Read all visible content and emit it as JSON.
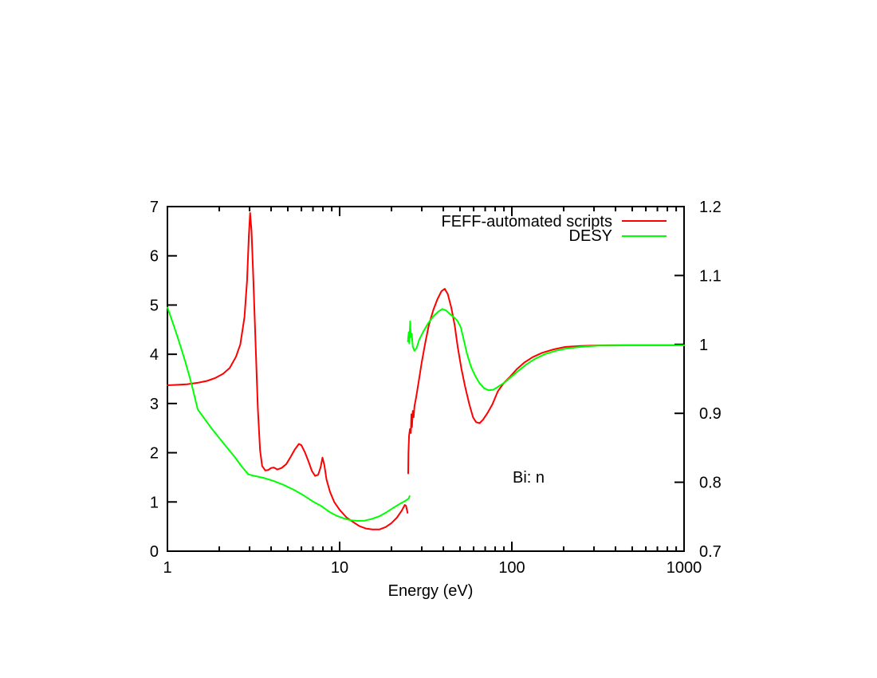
{
  "chart_data": {
    "type": "line",
    "title": "",
    "xlabel": "Energy (eV)",
    "annotation": "Bi: n",
    "x_scale": "log",
    "xlim": [
      1,
      1000
    ],
    "grid": false,
    "legend_position": "top-right-inside",
    "axes_color": "#000000",
    "text_color": "#000000",
    "background_color": "#ffffff",
    "x_ticks": [
      {
        "value": 1,
        "label": "1"
      },
      {
        "value": 10,
        "label": "10"
      },
      {
        "value": 100,
        "label": "100"
      },
      {
        "value": 1000,
        "label": "1000"
      }
    ],
    "left_axis": {
      "range": [
        0,
        7
      ],
      "ticks": [
        {
          "value": 0,
          "label": "0"
        },
        {
          "value": 1,
          "label": "1"
        },
        {
          "value": 2,
          "label": "2"
        },
        {
          "value": 3,
          "label": "3"
        },
        {
          "value": 4,
          "label": "4"
        },
        {
          "value": 5,
          "label": "5"
        },
        {
          "value": 6,
          "label": "6"
        },
        {
          "value": 7,
          "label": "7"
        }
      ]
    },
    "right_axis": {
      "range": [
        0.7,
        1.2
      ],
      "ticks": [
        {
          "value": 0.7,
          "label": "0.7"
        },
        {
          "value": 0.8,
          "label": "0.8"
        },
        {
          "value": 0.9,
          "label": "0.9"
        },
        {
          "value": 1.0,
          "label": "1"
        },
        {
          "value": 1.1,
          "label": "1.1"
        },
        {
          "value": 1.2,
          "label": "1.2"
        }
      ]
    },
    "series": [
      {
        "name": "FEFF-automated scripts",
        "color": "#ff0000",
        "axis": "left",
        "segments": [
          [
            [
              1,
              3.37
            ],
            [
              1.15,
              3.38
            ],
            [
              1.3,
              3.39
            ],
            [
              1.5,
              3.42
            ],
            [
              1.7,
              3.46
            ],
            [
              1.9,
              3.52
            ],
            [
              2.1,
              3.6
            ],
            [
              2.3,
              3.72
            ],
            [
              2.5,
              3.95
            ],
            [
              2.65,
              4.2
            ],
            [
              2.8,
              4.75
            ],
            [
              2.9,
              5.5
            ],
            [
              2.97,
              6.4
            ],
            [
              3.02,
              6.87
            ],
            [
              3.08,
              6.5
            ],
            [
              3.15,
              5.6
            ],
            [
              3.25,
              4.2
            ],
            [
              3.35,
              2.9
            ],
            [
              3.45,
              2.05
            ],
            [
              3.55,
              1.73
            ],
            [
              3.7,
              1.64
            ],
            [
              3.85,
              1.65
            ],
            [
              4.0,
              1.69
            ],
            [
              4.15,
              1.7
            ],
            [
              4.35,
              1.66
            ],
            [
              4.6,
              1.69
            ],
            [
              4.9,
              1.77
            ],
            [
              5.2,
              1.92
            ],
            [
              5.5,
              2.07
            ],
            [
              5.8,
              2.18
            ],
            [
              6.0,
              2.15
            ],
            [
              6.3,
              2.0
            ],
            [
              6.6,
              1.82
            ],
            [
              6.9,
              1.63
            ],
            [
              7.2,
              1.53
            ],
            [
              7.5,
              1.55
            ],
            [
              7.75,
              1.7
            ],
            [
              7.95,
              1.9
            ],
            [
              8.15,
              1.75
            ],
            [
              8.4,
              1.45
            ],
            [
              8.8,
              1.2
            ],
            [
              9.3,
              1.0
            ],
            [
              10,
              0.84
            ],
            [
              11,
              0.68
            ],
            [
              12,
              0.59
            ],
            [
              13,
              0.51
            ],
            [
              14.2,
              0.46
            ],
            [
              15.5,
              0.44
            ],
            [
              17,
              0.44
            ],
            [
              18.5,
              0.49
            ],
            [
              20,
              0.57
            ],
            [
              21.5,
              0.68
            ],
            [
              23,
              0.83
            ],
            [
              23.9,
              0.94
            ],
            [
              24.3,
              0.92
            ],
            [
              24.8,
              0.78
            ]
          ],
          [
            [
              25,
              1.58
            ],
            [
              25.1,
              2.0
            ],
            [
              25.3,
              2.35
            ],
            [
              25.6,
              2.48
            ],
            [
              25.9,
              2.4
            ],
            [
              26.1,
              2.78
            ],
            [
              26.3,
              2.52
            ],
            [
              26.6,
              2.85
            ],
            [
              26.9,
              2.72
            ],
            [
              27.2,
              2.95
            ],
            [
              27.8,
              3.12
            ],
            [
              28.8,
              3.45
            ],
            [
              30,
              3.85
            ],
            [
              31.5,
              4.25
            ],
            [
              33,
              4.6
            ],
            [
              35,
              4.9
            ],
            [
              37,
              5.12
            ],
            [
              39,
              5.28
            ],
            [
              40.8,
              5.33
            ],
            [
              42.5,
              5.22
            ],
            [
              44.5,
              4.95
            ],
            [
              46.5,
              4.6
            ],
            [
              48.5,
              4.15
            ],
            [
              51,
              3.7
            ],
            [
              53.5,
              3.35
            ],
            [
              56.5,
              3.0
            ],
            [
              59.5,
              2.72
            ],
            [
              62,
              2.62
            ],
            [
              65,
              2.6
            ],
            [
              68,
              2.67
            ],
            [
              72,
              2.8
            ],
            [
              77,
              2.98
            ],
            [
              83,
              3.25
            ],
            [
              90,
              3.42
            ],
            [
              98,
              3.55
            ],
            [
              107,
              3.7
            ],
            [
              118,
              3.83
            ],
            [
              132,
              3.94
            ],
            [
              150,
              4.03
            ],
            [
              175,
              4.1
            ],
            [
              205,
              4.15
            ],
            [
              250,
              4.17
            ],
            [
              320,
              4.18
            ],
            [
              450,
              4.185
            ],
            [
              650,
              4.185
            ],
            [
              1000,
              4.185
            ]
          ]
        ]
      },
      {
        "name": "DESY",
        "color": "#00ff00",
        "axis": "left",
        "segments": [
          [
            [
              1,
              4.95
            ],
            [
              1.08,
              4.62
            ],
            [
              1.17,
              4.25
            ],
            [
              1.27,
              3.85
            ],
            [
              1.38,
              3.4
            ],
            [
              1.5,
              2.88
            ],
            [
              1.65,
              2.68
            ],
            [
              1.8,
              2.5
            ],
            [
              2.0,
              2.3
            ],
            [
              2.2,
              2.12
            ],
            [
              2.45,
              1.92
            ],
            [
              2.7,
              1.72
            ],
            [
              2.95,
              1.56
            ],
            [
              3.2,
              1.53
            ],
            [
              3.6,
              1.49
            ],
            [
              4.1,
              1.43
            ],
            [
              4.7,
              1.35
            ],
            [
              5.4,
              1.25
            ],
            [
              6.2,
              1.13
            ],
            [
              7.0,
              1.01
            ],
            [
              7.8,
              0.92
            ],
            [
              8.7,
              0.8
            ],
            [
              9.6,
              0.72
            ],
            [
              10.5,
              0.67
            ],
            [
              11.5,
              0.63
            ],
            [
              12.7,
              0.615
            ],
            [
              14,
              0.62
            ],
            [
              15.5,
              0.66
            ],
            [
              17,
              0.71
            ],
            [
              18.7,
              0.79
            ],
            [
              20.5,
              0.88
            ],
            [
              22.3,
              0.96
            ],
            [
              24,
              1.02
            ],
            [
              25.2,
              1.07
            ],
            [
              25.5,
              1.12
            ]
          ],
          [
            [
              24.9,
              4.26
            ],
            [
              25.2,
              4.45
            ],
            [
              25.4,
              4.22
            ],
            [
              25.7,
              4.67
            ],
            [
              25.9,
              4.35
            ],
            [
              26.2,
              4.42
            ],
            [
              26.6,
              4.15
            ],
            [
              27.2,
              4.07
            ],
            [
              28,
              4.13
            ],
            [
              29,
              4.3
            ],
            [
              30.5,
              4.45
            ],
            [
              32.5,
              4.62
            ],
            [
              35,
              4.77
            ],
            [
              37.5,
              4.87
            ],
            [
              39.5,
              4.92
            ],
            [
              41.5,
              4.89
            ],
            [
              44,
              4.81
            ],
            [
              46.5,
              4.74
            ],
            [
              48.5,
              4.67
            ],
            [
              50.5,
              4.55
            ],
            [
              52.5,
              4.3
            ],
            [
              55,
              4.0
            ],
            [
              58,
              3.74
            ],
            [
              61.5,
              3.55
            ],
            [
              65,
              3.41
            ],
            [
              69,
              3.31
            ],
            [
              73,
              3.27
            ],
            [
              78,
              3.28
            ],
            [
              84,
              3.35
            ],
            [
              91,
              3.43
            ],
            [
              99,
              3.54
            ],
            [
              108,
              3.65
            ],
            [
              120,
              3.78
            ],
            [
              135,
              3.9
            ],
            [
              155,
              4.0
            ],
            [
              180,
              4.07
            ],
            [
              210,
              4.12
            ],
            [
              250,
              4.15
            ],
            [
              320,
              4.175
            ],
            [
              450,
              4.18
            ],
            [
              650,
              4.18
            ],
            [
              1000,
              4.18
            ]
          ]
        ]
      }
    ]
  }
}
